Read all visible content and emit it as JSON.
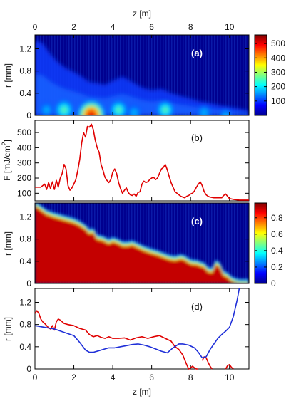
{
  "figure": {
    "top_axis_label": "z [m]",
    "bottom_axis_label": "z [m]"
  },
  "chart_data": [
    {
      "panel": "a",
      "type": "heatmap",
      "tag": "(a)",
      "xlabel": "",
      "ylabel": "r [mm]",
      "xlim": [
        0,
        11
      ],
      "ylim": [
        0,
        1.45
      ],
      "xticks_top": [
        0,
        2,
        4,
        6,
        8,
        10
      ],
      "yticks": [
        0,
        0.4,
        0.8,
        1.2
      ],
      "colorbar": {
        "range": [
          0,
          560
        ],
        "ticks": [
          100,
          200,
          300,
          400,
          500
        ]
      },
      "envelope_z": [
        0,
        0.4,
        0.8,
        1.2,
        1.6,
        2.0,
        2.4,
        2.8,
        3.2,
        3.6,
        4.0,
        4.5,
        5.0,
        5.5,
        6.0,
        6.5,
        7.0,
        7.5,
        8.0,
        8.5,
        9.0,
        9.5,
        10.0,
        10.5,
        11.0
      ],
      "envelope_r": [
        1.35,
        1.3,
        1.1,
        0.95,
        0.85,
        0.78,
        0.7,
        0.6,
        0.58,
        0.55,
        0.62,
        0.7,
        0.6,
        0.5,
        0.45,
        0.48,
        0.4,
        0.35,
        0.3,
        0.25,
        0.22,
        0.18,
        0.15,
        0.12,
        0.08
      ],
      "hotspots": [
        {
          "z": 2.9,
          "r": 0.0,
          "peak": 560
        },
        {
          "z": 1.5,
          "r": 0.1,
          "peak": 260
        },
        {
          "z": 4.3,
          "r": 0.1,
          "peak": 230
        },
        {
          "z": 6.7,
          "r": 0.1,
          "peak": 220
        },
        {
          "z": 5.1,
          "r": 0.05,
          "peak": 150
        },
        {
          "z": 8.7,
          "r": 0.05,
          "peak": 150
        },
        {
          "z": 0.6,
          "r": 0.1,
          "peak": 130
        },
        {
          "z": 9.8,
          "r": 0.0,
          "peak": 100
        }
      ]
    },
    {
      "panel": "b",
      "type": "line",
      "tag": "(b)",
      "xlabel": "",
      "ylabel": "F [mJ/cm",
      "ylabel_sup": "2",
      "ylabel_close": "]",
      "xlim": [
        0,
        11
      ],
      "ylim": [
        50,
        580
      ],
      "yticks": [
        100,
        200,
        300,
        400,
        500
      ],
      "series": [
        {
          "color": "#e00000",
          "x": [
            0,
            0.3,
            0.5,
            0.6,
            0.7,
            0.8,
            0.9,
            1.0,
            1.1,
            1.2,
            1.3,
            1.4,
            1.5,
            1.6,
            1.7,
            1.8,
            1.9,
            2.0,
            2.1,
            2.2,
            2.3,
            2.4,
            2.5,
            2.6,
            2.7,
            2.8,
            2.9,
            3.0,
            3.1,
            3.2,
            3.3,
            3.4,
            3.5,
            3.6,
            3.7,
            3.8,
            3.9,
            4.0,
            4.1,
            4.2,
            4.3,
            4.4,
            4.5,
            4.6,
            4.7,
            4.8,
            4.9,
            5.0,
            5.1,
            5.2,
            5.3,
            5.4,
            5.5,
            5.6,
            5.7,
            5.8,
            5.9,
            6.0,
            6.1,
            6.2,
            6.3,
            6.4,
            6.5,
            6.6,
            6.7,
            6.8,
            6.9,
            7.0,
            7.1,
            7.2,
            7.3,
            7.4,
            7.5,
            7.6,
            7.7,
            7.8,
            7.9,
            8.0,
            8.1,
            8.2,
            8.3,
            8.4,
            8.5,
            8.6,
            8.7,
            8.8,
            8.9,
            9.0,
            9.2,
            9.4,
            9.6,
            9.7,
            9.8,
            9.9,
            10.0,
            10.2,
            10.5,
            10.8,
            11.0
          ],
          "y": [
            140,
            140,
            160,
            125,
            170,
            130,
            175,
            125,
            185,
            140,
            200,
            230,
            290,
            260,
            150,
            120,
            135,
            160,
            190,
            250,
            320,
            430,
            500,
            470,
            540,
            535,
            555,
            520,
            450,
            400,
            370,
            290,
            250,
            205,
            185,
            170,
            190,
            240,
            260,
            230,
            170,
            130,
            100,
            120,
            135,
            105,
            90,
            85,
            95,
            80,
            105,
            110,
            160,
            180,
            170,
            175,
            190,
            200,
            205,
            190,
            200,
            230,
            260,
            270,
            290,
            255,
            210,
            170,
            140,
            110,
            100,
            90,
            80,
            75,
            70,
            80,
            85,
            95,
            100,
            115,
            140,
            160,
            175,
            150,
            110,
            90,
            80,
            75,
            70,
            70,
            70,
            85,
            95,
            80,
            65,
            60,
            55,
            55,
            55
          ]
        }
      ]
    },
    {
      "panel": "c",
      "type": "heatmap",
      "tag": "(c)",
      "xlabel": "",
      "ylabel": "r [mm]",
      "xlim": [
        0,
        11
      ],
      "ylim": [
        0,
        1.45
      ],
      "yticks": [
        0,
        0.4,
        0.8,
        1.2
      ],
      "colorbar": {
        "range": [
          0,
          0.98
        ],
        "ticks": [
          0,
          0.2,
          0.4,
          0.6,
          0.8
        ]
      },
      "boundary_z": [
        0,
        0.3,
        0.6,
        1.0,
        1.5,
        2.0,
        2.3,
        2.6,
        2.8,
        3.0,
        3.2,
        3.5,
        3.8,
        4.0,
        4.3,
        4.5,
        4.8,
        5.0,
        5.3,
        5.6,
        6.0,
        6.3,
        6.6,
        6.9,
        7.2,
        7.5,
        7.7,
        7.9,
        8.1,
        8.3,
        8.5,
        8.7,
        8.9,
        9.1,
        9.3,
        9.5,
        9.7,
        9.9,
        10.1,
        10.3,
        10.5,
        10.8,
        11.0
      ],
      "boundary_r": [
        1.4,
        1.33,
        1.25,
        1.2,
        1.15,
        1.1,
        1.05,
        0.98,
        0.9,
        0.92,
        0.8,
        0.78,
        0.72,
        0.76,
        0.72,
        0.68,
        0.68,
        0.7,
        0.65,
        0.6,
        0.55,
        0.52,
        0.48,
        0.44,
        0.42,
        0.45,
        0.43,
        0.38,
        0.35,
        0.35,
        0.32,
        0.3,
        0.22,
        0.2,
        0.35,
        0.3,
        0.15,
        0.12,
        0.05,
        0.02,
        0.0,
        0.0,
        0.0
      ]
    },
    {
      "panel": "d",
      "type": "line",
      "tag": "(d)",
      "xlabel": "z [m]",
      "ylabel": "r [mm]",
      "xlim": [
        0,
        11
      ],
      "ylim": [
        0,
        1.45
      ],
      "xticks": [
        0,
        2,
        4,
        6,
        8,
        10
      ],
      "yticks": [
        0,
        0.4,
        0.8,
        1.2
      ],
      "series": [
        {
          "color": "#e00000",
          "x": [
            0,
            0.1,
            0.2,
            0.3,
            0.4,
            0.5,
            0.6,
            0.7,
            0.8,
            0.9,
            1.0,
            1.1,
            1.2,
            1.3,
            1.4,
            1.5,
            1.7,
            2.0,
            2.3,
            2.6,
            2.8,
            3.0,
            3.2,
            3.4,
            3.6,
            3.8,
            4.0,
            4.3,
            4.6,
            4.9,
            5.2,
            5.5,
            5.8,
            6.1,
            6.4,
            6.7,
            7.0,
            7.2,
            7.4,
            7.6,
            7.8,
            7.9,
            8.0,
            8.1,
            8.2,
            8.3,
            8.4
          ],
          "y": [
            1.0,
            1.05,
            1.0,
            0.9,
            0.85,
            0.82,
            0.78,
            0.74,
            0.72,
            0.78,
            0.7,
            0.85,
            0.9,
            0.88,
            0.85,
            0.82,
            0.8,
            0.78,
            0.73,
            0.7,
            0.62,
            0.58,
            0.6,
            0.57,
            0.55,
            0.58,
            0.55,
            0.55,
            0.56,
            0.52,
            0.56,
            0.58,
            0.55,
            0.58,
            0.6,
            0.55,
            0.5,
            0.4,
            0.35,
            0.25,
            0.08,
            0.0,
            0.02,
            0.05,
            0.02,
            0.0,
            0.0
          ]
        },
        {
          "color": "#e00000",
          "x": [
            8.6,
            8.7,
            8.8,
            8.9,
            9.0,
            9.1
          ],
          "y": [
            0.15,
            0.22,
            0.2,
            0.12,
            0.05,
            0.0
          ]
        },
        {
          "color": "#e00000",
          "x": [
            9.8,
            9.9,
            10.0,
            10.1,
            10.2
          ],
          "y": [
            0.0,
            0.06,
            0.08,
            0.03,
            0.0
          ]
        },
        {
          "color": "#1f2fd8",
          "x": [
            0,
            0.5,
            1.0,
            1.5,
            2.0,
            2.3,
            2.6,
            2.8,
            3.0,
            3.3,
            3.6,
            3.8,
            4.1,
            4.4,
            4.7,
            5.0,
            5.3,
            5.6,
            5.9,
            6.2,
            6.5,
            6.8,
            7.1,
            7.4,
            7.6,
            7.9,
            8.2,
            8.4,
            8.6,
            8.8,
            9.0,
            9.2,
            9.4,
            9.6,
            9.8,
            10.0,
            10.2,
            10.4,
            10.5
          ],
          "y": [
            0.78,
            0.75,
            0.72,
            0.66,
            0.6,
            0.48,
            0.34,
            0.3,
            0.3,
            0.33,
            0.36,
            0.38,
            0.38,
            0.4,
            0.42,
            0.44,
            0.45,
            0.43,
            0.4,
            0.36,
            0.32,
            0.29,
            0.38,
            0.45,
            0.45,
            0.43,
            0.38,
            0.3,
            0.2,
            0.22,
            0.35,
            0.45,
            0.55,
            0.62,
            0.68,
            0.75,
            0.95,
            1.25,
            1.45
          ]
        }
      ]
    }
  ]
}
